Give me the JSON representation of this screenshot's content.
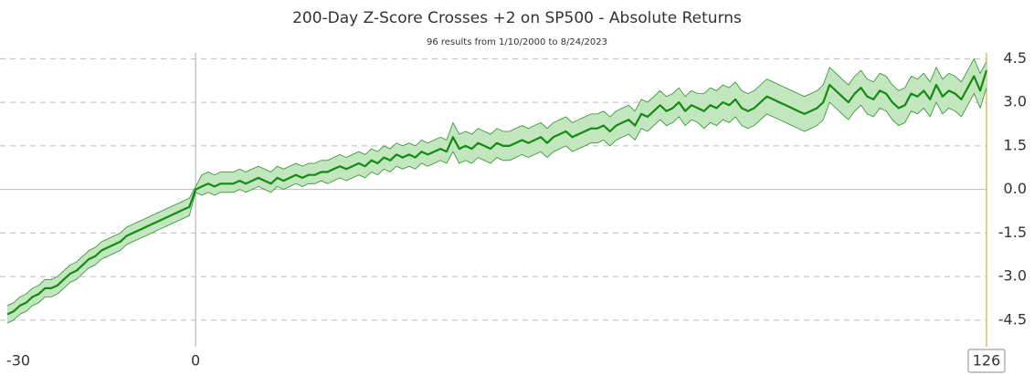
{
  "chart_data": {
    "type": "line",
    "title": "200-Day Z-Score Crosses +2 on SP500 - Absolute Returns",
    "subtitle": "96 results from 1/10/2000 to 8/24/2023",
    "x": [
      -30,
      -29,
      -28,
      -27,
      -26,
      -25,
      -24,
      -23,
      -22,
      -21,
      -20,
      -19,
      -18,
      -17,
      -16,
      -15,
      -14,
      -13,
      -12,
      -11,
      -10,
      -9,
      -8,
      -7,
      -6,
      -5,
      -4,
      -3,
      -2,
      -1,
      0,
      1,
      2,
      3,
      4,
      5,
      6,
      7,
      8,
      9,
      10,
      11,
      12,
      13,
      14,
      15,
      16,
      17,
      18,
      19,
      20,
      21,
      22,
      23,
      24,
      25,
      26,
      27,
      28,
      29,
      30,
      31,
      32,
      33,
      34,
      35,
      36,
      37,
      38,
      39,
      40,
      41,
      42,
      43,
      44,
      45,
      46,
      47,
      48,
      49,
      50,
      51,
      52,
      53,
      54,
      55,
      56,
      57,
      58,
      59,
      60,
      61,
      62,
      63,
      64,
      65,
      66,
      67,
      68,
      69,
      70,
      71,
      72,
      73,
      74,
      75,
      76,
      77,
      78,
      79,
      80,
      81,
      82,
      83,
      84,
      85,
      86,
      87,
      88,
      89,
      90,
      91,
      92,
      93,
      94,
      95,
      96,
      97,
      98,
      99,
      100,
      101,
      102,
      103,
      104,
      105,
      106,
      107,
      108,
      109,
      110,
      111,
      112,
      113,
      114,
      115,
      116,
      117,
      118,
      119,
      120,
      121,
      122,
      123,
      124,
      125,
      126
    ],
    "values": [
      -4.3,
      -4.2,
      -4.0,
      -3.9,
      -3.7,
      -3.6,
      -3.4,
      -3.4,
      -3.3,
      -3.1,
      -2.9,
      -2.8,
      -2.6,
      -2.4,
      -2.3,
      -2.1,
      -2.0,
      -1.9,
      -1.8,
      -1.6,
      -1.5,
      -1.4,
      -1.3,
      -1.2,
      -1.1,
      -1.0,
      -0.9,
      -0.8,
      -0.7,
      -0.6,
      0.0,
      0.1,
      0.2,
      0.1,
      0.2,
      0.2,
      0.2,
      0.3,
      0.2,
      0.3,
      0.4,
      0.3,
      0.2,
      0.4,
      0.3,
      0.4,
      0.5,
      0.4,
      0.5,
      0.5,
      0.6,
      0.6,
      0.7,
      0.8,
      0.7,
      0.8,
      0.9,
      0.8,
      1.0,
      0.9,
      1.1,
      1.0,
      1.2,
      1.1,
      1.2,
      1.1,
      1.3,
      1.2,
      1.3,
      1.4,
      1.3,
      1.8,
      1.4,
      1.5,
      1.4,
      1.6,
      1.5,
      1.4,
      1.6,
      1.5,
      1.5,
      1.6,
      1.7,
      1.6,
      1.7,
      1.8,
      1.6,
      1.8,
      1.9,
      2.0,
      1.8,
      1.9,
      2.0,
      2.1,
      2.1,
      2.2,
      2.0,
      2.2,
      2.3,
      2.4,
      2.2,
      2.6,
      2.5,
      2.7,
      2.9,
      2.7,
      2.8,
      3.0,
      2.7,
      2.9,
      2.8,
      2.7,
      2.9,
      2.8,
      3.0,
      2.9,
      3.1,
      2.8,
      2.7,
      2.8,
      3.0,
      3.2,
      3.1,
      3.0,
      2.9,
      2.8,
      2.7,
      2.6,
      2.7,
      2.8,
      3.0,
      3.6,
      3.4,
      3.2,
      3.0,
      3.3,
      3.5,
      3.2,
      3.1,
      3.4,
      3.3,
      3.0,
      2.8,
      2.9,
      3.3,
      3.2,
      3.4,
      3.1,
      3.6,
      3.2,
      3.4,
      3.3,
      3.1,
      3.5,
      3.9,
      3.4,
      4.1
    ],
    "upper": [
      -4.0,
      -3.9,
      -3.7,
      -3.6,
      -3.4,
      -3.3,
      -3.1,
      -3.1,
      -3.0,
      -2.8,
      -2.6,
      -2.5,
      -2.3,
      -2.1,
      -2.0,
      -1.8,
      -1.7,
      -1.6,
      -1.5,
      -1.3,
      -1.2,
      -1.1,
      -1.0,
      -0.9,
      -0.8,
      -0.7,
      -0.6,
      -0.5,
      -0.4,
      -0.3,
      0.1,
      0.5,
      0.6,
      0.5,
      0.6,
      0.6,
      0.6,
      0.7,
      0.6,
      0.7,
      0.8,
      0.7,
      0.6,
      0.8,
      0.7,
      0.8,
      0.9,
      0.8,
      0.9,
      0.9,
      1.0,
      1.0,
      1.1,
      1.2,
      1.1,
      1.2,
      1.3,
      1.2,
      1.4,
      1.3,
      1.5,
      1.4,
      1.6,
      1.5,
      1.6,
      1.5,
      1.7,
      1.6,
      1.7,
      1.8,
      1.7,
      2.3,
      1.9,
      2.0,
      1.9,
      2.1,
      2.0,
      1.9,
      2.1,
      2.0,
      2.0,
      2.1,
      2.2,
      2.1,
      2.2,
      2.3,
      2.1,
      2.3,
      2.4,
      2.5,
      2.3,
      2.4,
      2.5,
      2.6,
      2.6,
      2.7,
      2.5,
      2.7,
      2.8,
      2.9,
      2.7,
      3.1,
      3.0,
      3.2,
      3.4,
      3.2,
      3.3,
      3.5,
      3.2,
      3.4,
      3.3,
      3.3,
      3.5,
      3.4,
      3.6,
      3.5,
      3.7,
      3.4,
      3.3,
      3.4,
      3.6,
      3.8,
      3.7,
      3.6,
      3.5,
      3.4,
      3.3,
      3.2,
      3.3,
      3.4,
      3.6,
      4.2,
      4.0,
      3.8,
      3.6,
      3.9,
      4.1,
      3.8,
      3.7,
      4.0,
      3.9,
      3.6,
      3.4,
      3.5,
      3.9,
      3.8,
      4.0,
      3.7,
      4.2,
      3.8,
      4.0,
      3.9,
      3.7,
      4.1,
      4.5,
      4.0,
      4.4
    ],
    "lower": [
      -4.6,
      -4.5,
      -4.3,
      -4.2,
      -4.0,
      -3.9,
      -3.7,
      -3.7,
      -3.6,
      -3.4,
      -3.2,
      -3.1,
      -2.9,
      -2.7,
      -2.6,
      -2.4,
      -2.3,
      -2.2,
      -2.1,
      -1.9,
      -1.8,
      -1.7,
      -1.6,
      -1.5,
      -1.4,
      -1.3,
      -1.2,
      -1.1,
      -1.0,
      -0.9,
      -0.1,
      -0.2,
      -0.1,
      -0.2,
      -0.1,
      -0.1,
      -0.1,
      0.0,
      -0.1,
      0.0,
      0.1,
      0.0,
      -0.1,
      0.1,
      0.0,
      0.1,
      0.2,
      0.1,
      0.2,
      0.2,
      0.3,
      0.2,
      0.3,
      0.4,
      0.3,
      0.4,
      0.5,
      0.4,
      0.6,
      0.5,
      0.7,
      0.6,
      0.8,
      0.7,
      0.8,
      0.7,
      0.9,
      0.8,
      0.9,
      1.0,
      0.9,
      1.3,
      0.9,
      1.0,
      0.9,
      1.1,
      1.0,
      0.9,
      1.1,
      1.0,
      1.0,
      1.1,
      1.2,
      1.1,
      1.2,
      1.3,
      1.1,
      1.3,
      1.4,
      1.5,
      1.3,
      1.4,
      1.5,
      1.6,
      1.6,
      1.7,
      1.5,
      1.7,
      1.8,
      1.9,
      1.7,
      2.1,
      2.0,
      2.2,
      2.4,
      2.2,
      2.3,
      2.5,
      2.2,
      2.4,
      2.3,
      2.1,
      2.3,
      2.2,
      2.4,
      2.3,
      2.5,
      2.2,
      2.1,
      2.2,
      2.4,
      2.6,
      2.5,
      2.4,
      2.3,
      2.2,
      2.1,
      2.0,
      2.1,
      2.2,
      2.4,
      3.0,
      2.8,
      2.6,
      2.4,
      2.7,
      2.9,
      2.6,
      2.5,
      2.8,
      2.7,
      2.4,
      2.2,
      2.3,
      2.7,
      2.6,
      2.8,
      2.5,
      3.0,
      2.6,
      2.8,
      2.7,
      2.5,
      2.9,
      3.3,
      2.8,
      3.5
    ],
    "color": "#138a13",
    "band_color": "#c2e6bd",
    "band_edge_color": "#2f8f2f",
    "marker_color": "#e0b030",
    "xlim": [
      -30,
      126
    ],
    "ylim": [
      -5.1,
      4.7
    ],
    "xticks": [
      -30,
      0,
      126
    ],
    "yticks": [
      4.5,
      {
        "value": 3,
        "label": "3.0"
      },
      1.5,
      {
        "value": 0,
        "label": "0.0"
      },
      -1.5,
      {
        "value": -3,
        "label": "-3.0"
      },
      -4.5
    ],
    "grid": true
  }
}
